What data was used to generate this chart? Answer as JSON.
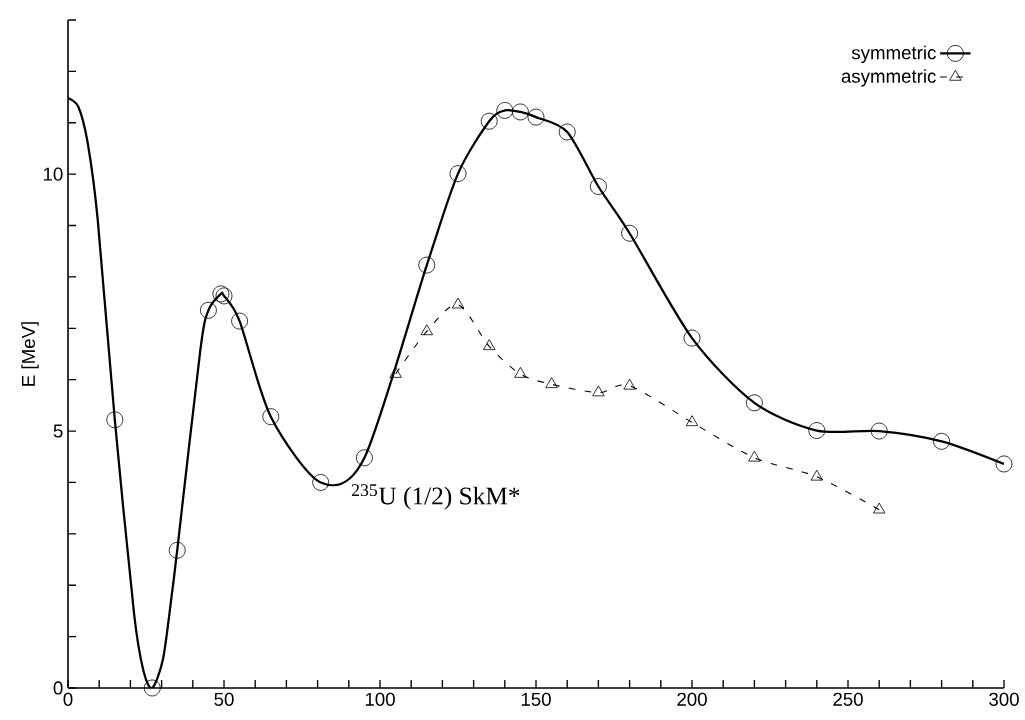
{
  "chart_data": {
    "type": "line",
    "ylabel": "E [MeV]",
    "annotations": [
      "$^{235}$U (1/2) SkM*"
    ],
    "xlim": [
      0,
      300
    ],
    "ylim": [
      0,
      13
    ],
    "xticks": [
      0,
      {
        "value": 10,
        "label": null
      },
      {
        "value": 20,
        "label": null
      },
      {
        "value": 30,
        "label": null
      },
      {
        "value": 40,
        "label": null
      },
      50,
      {
        "value": 60,
        "label": null
      },
      {
        "value": 70,
        "label": null
      },
      {
        "value": 80,
        "label": null
      },
      {
        "value": 90,
        "label": null
      },
      100,
      {
        "value": 110,
        "label": null
      },
      {
        "value": 120,
        "label": null
      },
      {
        "value": 130,
        "label": null
      },
      {
        "value": 140,
        "label": null
      },
      150,
      {
        "value": 160,
        "label": null
      },
      {
        "value": 170,
        "label": null
      },
      {
        "value": 180,
        "label": null
      },
      {
        "value": 190,
        "label": null
      },
      200,
      {
        "value": 210,
        "label": null
      },
      {
        "value": 220,
        "label": null
      },
      {
        "value": 230,
        "label": null
      },
      {
        "value": 240,
        "label": null
      },
      250,
      {
        "value": 260,
        "label": null
      },
      {
        "value": 270,
        "label": null
      },
      {
        "value": 280,
        "label": null
      },
      {
        "value": 290,
        "label": null
      },
      300
    ],
    "yticks": [
      0,
      {
        "value": 1,
        "label": null
      },
      {
        "value": 2,
        "label": null
      },
      {
        "value": 3,
        "label": null
      },
      {
        "value": 4,
        "label": null
      },
      5,
      {
        "value": 6,
        "label": null
      },
      {
        "value": 7,
        "label": null
      },
      {
        "value": 8,
        "label": null
      },
      {
        "value": 9,
        "label": null
      },
      10,
      {
        "value": 11,
        "label": null
      },
      {
        "value": 12,
        "label": null
      },
      {
        "value": 13,
        "label": null
      }
    ],
    "grid": false,
    "legend": "top right",
    "series": [
      {
        "name": "symmetric",
        "type": "scatter",
        "color": "#000000",
        "marker": "circle",
        "line_style": "solid",
        "x": [
          15,
          27,
          35,
          45,
          49,
          50,
          55,
          65,
          81,
          95,
          115,
          125,
          135,
          140,
          145,
          150,
          160,
          170,
          180,
          200,
          220,
          240,
          260,
          280,
          300
        ],
        "values": [
          5.22,
          0,
          2.68,
          7.35,
          7.67,
          7.63,
          7.14,
          5.28,
          4.0,
          4.48,
          8.23,
          10.01,
          11.03,
          11.24,
          11.21,
          11.11,
          10.82,
          9.76,
          8.85,
          6.81,
          5.55,
          5.01,
          5.0,
          4.8,
          4.36
        ]
      },
      {
        "name": "asymmetric",
        "color": "#000000",
        "marker": "triangle",
        "line_style": "dashed",
        "x": [
          105,
          115,
          125,
          135,
          145,
          155,
          170,
          180,
          200,
          220,
          240,
          260
        ],
        "values": [
          6.11,
          6.94,
          7.46,
          6.65,
          6.11,
          5.91,
          5.75,
          5.88,
          5.17,
          4.48,
          4.11,
          3.47
        ]
      },
      {
        "color": "#000000",
        "marker": "none",
        "line_style": "solid",
        "x": [
          0,
          3.3,
          6.3,
          9.5,
          15,
          21.2,
          24.2,
          27,
          30.5,
          33.4,
          35,
          42.4,
          45,
          49,
          50,
          55,
          65,
          81,
          95,
          115,
          125,
          135,
          140,
          145,
          150,
          160,
          170,
          180,
          200,
          220,
          240,
          260,
          280,
          300
        ],
        "values": [
          11.48,
          11.31,
          10.61,
          9.13,
          5.22,
          1.43,
          0.33,
          0,
          0.58,
          1.88,
          2.68,
          6.57,
          7.35,
          7.67,
          7.63,
          7.14,
          5.28,
          4.0,
          4.48,
          8.23,
          10.01,
          11.03,
          11.24,
          11.21,
          11.11,
          10.82,
          9.76,
          8.85,
          6.81,
          5.55,
          5.01,
          5.0,
          4.8,
          4.36
        ]
      }
    ]
  }
}
